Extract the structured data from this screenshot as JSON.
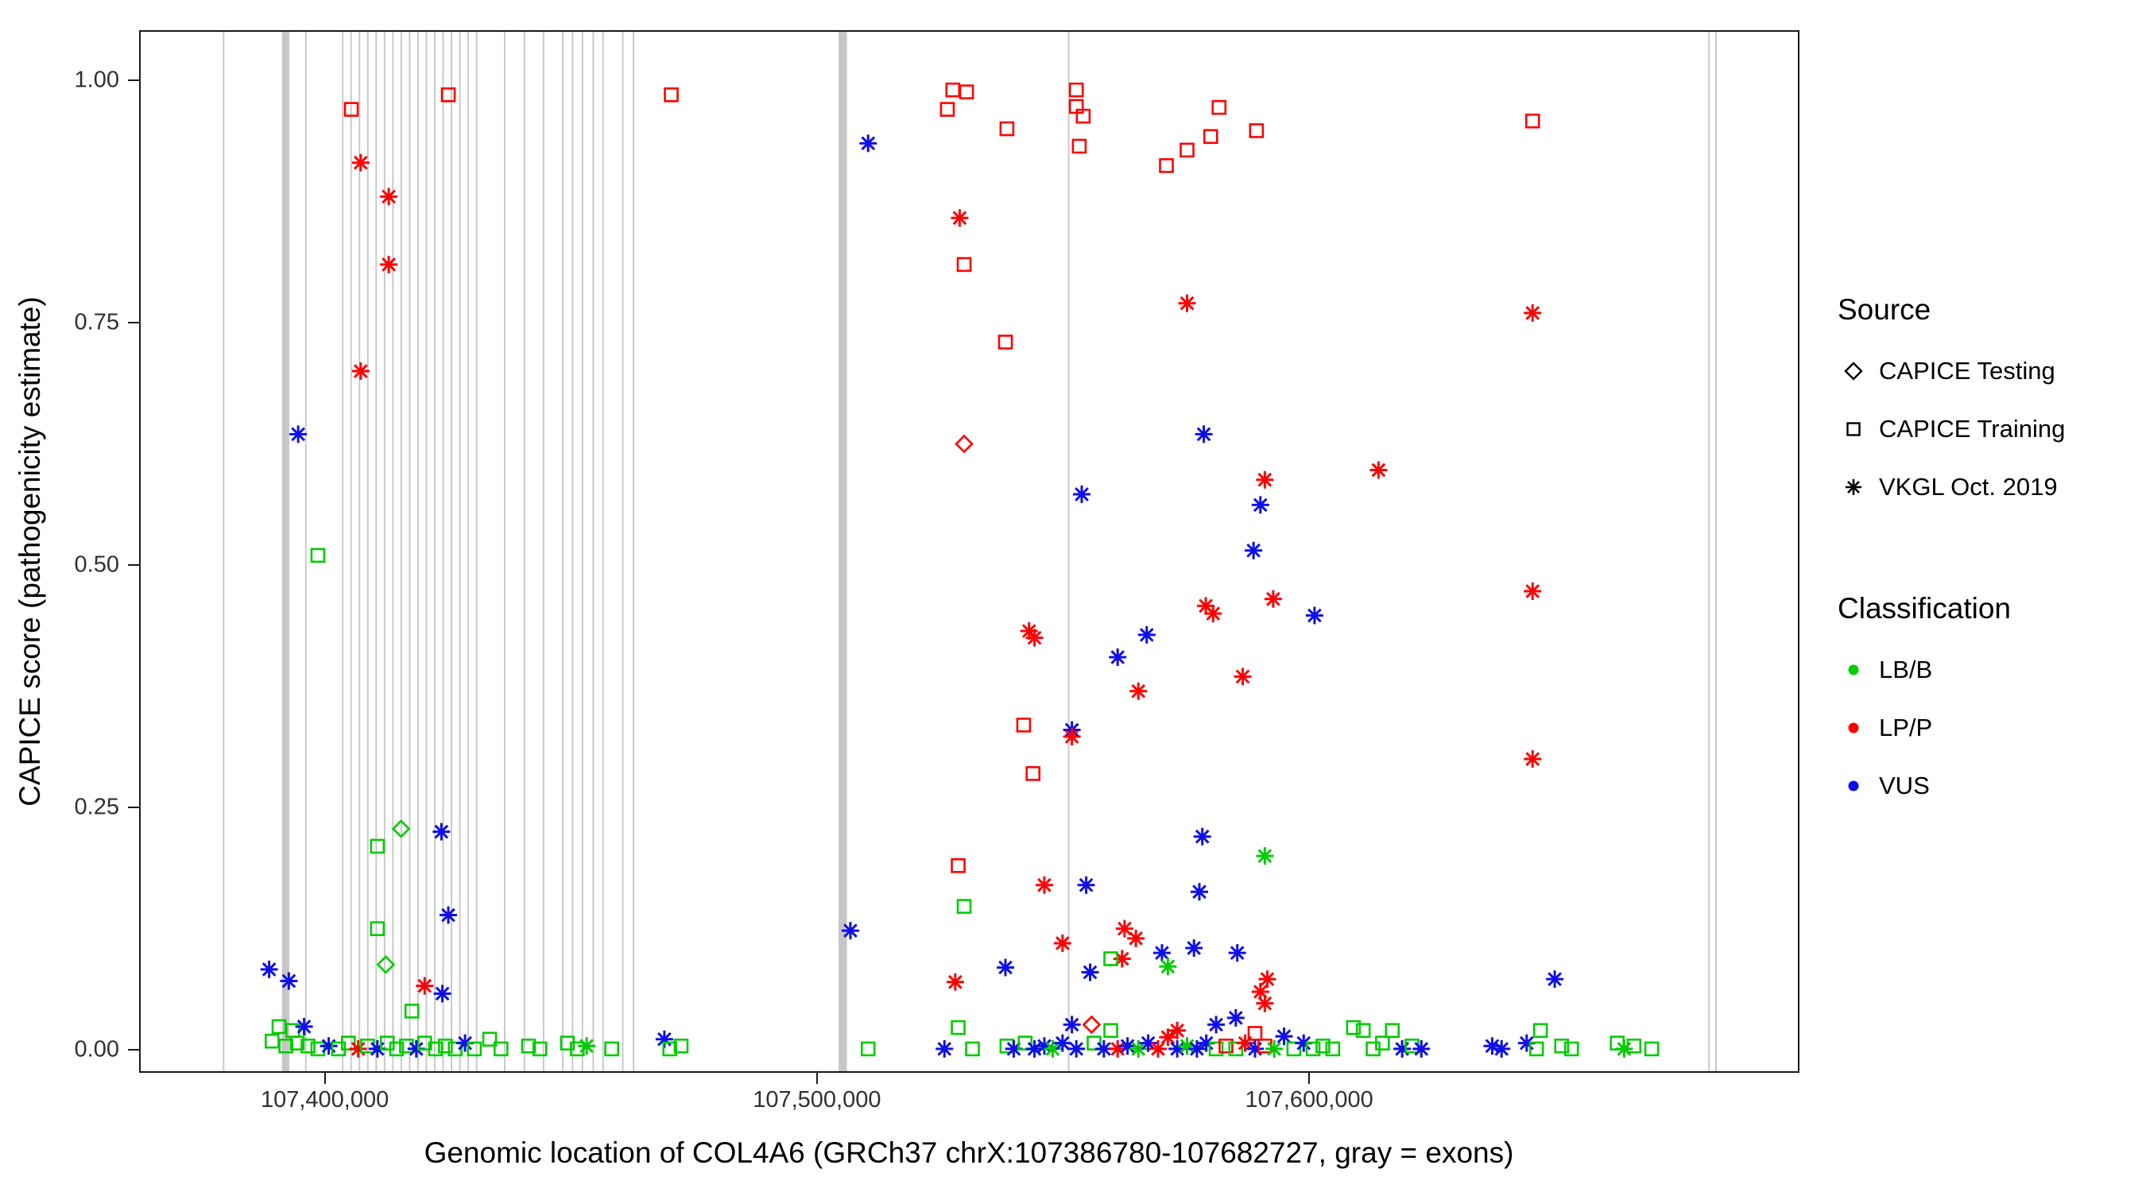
{
  "chart_data": {
    "type": "scatter",
    "title": "",
    "xlabel": "Genomic location of COL4A6 (GRCh37 chrX:107386780-107682727, gray = exons)",
    "ylabel": "CAPICE score (pathogenicity estimate)",
    "xlim": [
      107362600,
      107699300
    ],
    "ylim": [
      -0.022,
      1.05
    ],
    "grid": false,
    "x_ticks": [
      {
        "value": 107400000,
        "label": "107,400,000"
      },
      {
        "value": 107500000,
        "label": "107,500,000"
      },
      {
        "value": 107600000,
        "label": "107,600,000"
      }
    ],
    "y_ticks": [
      {
        "value": 0.0,
        "label": "0.00"
      },
      {
        "value": 0.25,
        "label": "0.25"
      },
      {
        "value": 0.5,
        "label": "0.50"
      },
      {
        "value": 0.75,
        "label": "0.75"
      },
      {
        "value": 1.0,
        "label": "1.00"
      }
    ],
    "exon_color": "#C6C6C6",
    "class_colors": {
      "LB": "#00CC00",
      "LP": "#FF0000",
      "VUS": "#0F0FE8"
    },
    "source_codes": {
      "test": "CAPICE Testing",
      "train": "CAPICE Training",
      "vkgl": "VKGL Oct. 2019"
    },
    "class_codes": {
      "LB": "LB/B",
      "LP": "LP/P",
      "VUS": "VUS"
    },
    "legend": {
      "position": "right",
      "source": {
        "title": "Source",
        "items": [
          {
            "label": "CAPICE Testing",
            "shape": "diamond"
          },
          {
            "label": "CAPICE Training",
            "shape": "square"
          },
          {
            "label": "VKGL Oct. 2019",
            "shape": "asterisk"
          }
        ]
      },
      "classification": {
        "title": "Classification",
        "items": [
          {
            "label": "LB/B",
            "color": "#00CC00"
          },
          {
            "label": "LP/P",
            "color": "#FF0000"
          },
          {
            "label": "VUS",
            "color": "#0F0FE8"
          }
        ]
      }
    },
    "exons": [
      [
        107379300,
        107379600
      ],
      [
        107391300,
        107392800
      ],
      [
        107396000,
        107396300
      ],
      [
        107403500,
        107403800
      ],
      [
        107405200,
        107405500
      ],
      [
        107406900,
        107407200
      ],
      [
        107408600,
        107408900
      ],
      [
        107410300,
        107410600
      ],
      [
        107412000,
        107412300
      ],
      [
        107413700,
        107414000
      ],
      [
        107415400,
        107415700
      ],
      [
        107417100,
        107417400
      ],
      [
        107418800,
        107419100
      ],
      [
        107420500,
        107420800
      ],
      [
        107422200,
        107422500
      ],
      [
        107423900,
        107424200
      ],
      [
        107425600,
        107425900
      ],
      [
        107427300,
        107427600
      ],
      [
        107429000,
        107429300
      ],
      [
        107430700,
        107431000
      ],
      [
        107436400,
        107436700
      ],
      [
        107440400,
        107440700
      ],
      [
        107444300,
        107444600
      ],
      [
        107448200,
        107448500
      ],
      [
        107450200,
        107450500
      ],
      [
        107452200,
        107452500
      ],
      [
        107454400,
        107454700
      ],
      [
        107456400,
        107456700
      ],
      [
        107460400,
        107460700
      ],
      [
        107462600,
        107462900
      ],
      [
        107504400,
        107506100
      ],
      [
        107551000,
        107551300
      ],
      [
        107681100,
        107681400
      ],
      [
        107682500,
        107682800
      ]
    ],
    "point_format": [
      "genomic_position",
      "capice_score",
      "source",
      "classification"
    ],
    "points": [
      [
        107405400,
        0.97,
        "train",
        "LP"
      ],
      [
        107425100,
        0.985,
        "train",
        "LP"
      ],
      [
        107470400,
        0.985,
        "train",
        "LP"
      ],
      [
        107407300,
        0.915,
        "vkgl",
        "LP"
      ],
      [
        107413000,
        0.88,
        "vkgl",
        "LP"
      ],
      [
        107413000,
        0.81,
        "vkgl",
        "LP"
      ],
      [
        107407300,
        0.7,
        "vkgl",
        "LP"
      ],
      [
        107394600,
        0.635,
        "vkgl",
        "VUS"
      ],
      [
        107398600,
        0.51,
        "train",
        "LB"
      ],
      [
        107415500,
        0.228,
        "test",
        "LB"
      ],
      [
        107423700,
        0.225,
        "vkgl",
        "VUS"
      ],
      [
        107410700,
        0.21,
        "train",
        "LB"
      ],
      [
        107425100,
        0.139,
        "vkgl",
        "VUS"
      ],
      [
        107410700,
        0.125,
        "train",
        "LB"
      ],
      [
        107412400,
        0.088,
        "test",
        "LB"
      ],
      [
        107388700,
        0.083,
        "vkgl",
        "VUS"
      ],
      [
        107392700,
        0.071,
        "vkgl",
        "VUS"
      ],
      [
        107420300,
        0.066,
        "vkgl",
        "LP"
      ],
      [
        107423900,
        0.058,
        "vkgl",
        "VUS"
      ],
      [
        107390700,
        0.024,
        "train",
        "LB"
      ],
      [
        107393500,
        0.02,
        "train",
        "LB"
      ],
      [
        107395800,
        0.024,
        "vkgl",
        "VUS"
      ],
      [
        107389300,
        0.009,
        "train",
        "LB"
      ],
      [
        107392100,
        0.004,
        "train",
        "LB"
      ],
      [
        107394400,
        0.007,
        "train",
        "LB"
      ],
      [
        107396600,
        0.004,
        "train",
        "LB"
      ],
      [
        107398600,
        0.001,
        "train",
        "LB"
      ],
      [
        107400800,
        0.004,
        "vkgl",
        "VUS"
      ],
      [
        107402800,
        0.001,
        "train",
        "LB"
      ],
      [
        107404800,
        0.007,
        "train",
        "LB"
      ],
      [
        107406800,
        0.001,
        "vkgl",
        "LP"
      ],
      [
        107408700,
        0.004,
        "train",
        "LB"
      ],
      [
        107410700,
        0.001,
        "vkgl",
        "VUS"
      ],
      [
        107412700,
        0.007,
        "train",
        "LB"
      ],
      [
        107414600,
        0.001,
        "train",
        "LB"
      ],
      [
        107416600,
        0.004,
        "train",
        "LB"
      ],
      [
        107418600,
        0.001,
        "vkgl",
        "VUS"
      ],
      [
        107420300,
        0.007,
        "train",
        "LB"
      ],
      [
        107422500,
        0.001,
        "train",
        "LB"
      ],
      [
        107424500,
        0.004,
        "train",
        "LB"
      ],
      [
        107426500,
        0.001,
        "train",
        "LB"
      ],
      [
        107428500,
        0.007,
        "vkgl",
        "VUS"
      ],
      [
        107430400,
        0.001,
        "train",
        "LB"
      ],
      [
        107417700,
        0.04,
        "train",
        "LB"
      ],
      [
        107433500,
        0.011,
        "train",
        "LB"
      ],
      [
        107435800,
        0.001,
        "train",
        "LB"
      ],
      [
        107441400,
        0.004,
        "train",
        "LB"
      ],
      [
        107443700,
        0.001,
        "train",
        "LB"
      ],
      [
        107449300,
        0.007,
        "train",
        "LB"
      ],
      [
        107451300,
        0.001,
        "train",
        "LB"
      ],
      [
        107453200,
        0.004,
        "vkgl",
        "LB"
      ],
      [
        107458300,
        0.001,
        "train",
        "LB"
      ],
      [
        107469000,
        0.011,
        "vkgl",
        "VUS"
      ],
      [
        107470100,
        0.001,
        "train",
        "LB"
      ],
      [
        107472400,
        0.004,
        "train",
        "LB"
      ],
      [
        107510400,
        0.935,
        "vkgl",
        "VUS"
      ],
      [
        107506800,
        0.123,
        "vkgl",
        "VUS"
      ],
      [
        107510400,
        0.001,
        "train",
        "LB"
      ],
      [
        107527600,
        0.99,
        "train",
        "LP"
      ],
      [
        107530400,
        0.988,
        "train",
        "LP"
      ],
      [
        107526500,
        0.97,
        "train",
        "LP"
      ],
      [
        107538600,
        0.95,
        "train",
        "LP"
      ],
      [
        107552700,
        0.99,
        "train",
        "LP"
      ],
      [
        107552700,
        0.973,
        "train",
        "LP"
      ],
      [
        107554100,
        0.963,
        "train",
        "LP"
      ],
      [
        107553300,
        0.932,
        "train",
        "LP"
      ],
      [
        107571000,
        0.912,
        "train",
        "LP"
      ],
      [
        107575200,
        0.928,
        "train",
        "LP"
      ],
      [
        107580000,
        0.942,
        "train",
        "LP"
      ],
      [
        107581700,
        0.972,
        "train",
        "LP"
      ],
      [
        107589300,
        0.948,
        "train",
        "LP"
      ],
      [
        107645400,
        0.958,
        "train",
        "LP"
      ],
      [
        107529000,
        0.858,
        "vkgl",
        "LP"
      ],
      [
        107529900,
        0.81,
        "train",
        "LP"
      ],
      [
        107538300,
        0.73,
        "train",
        "LP"
      ],
      [
        107575200,
        0.77,
        "vkgl",
        "LP"
      ],
      [
        107645400,
        0.76,
        "vkgl",
        "LP"
      ],
      [
        107529900,
        0.625,
        "test",
        "LP"
      ],
      [
        107578600,
        0.635,
        "vkgl",
        "VUS"
      ],
      [
        107614100,
        0.598,
        "vkgl",
        "LP"
      ],
      [
        107591000,
        0.588,
        "vkgl",
        "LP"
      ],
      [
        107553800,
        0.573,
        "vkgl",
        "VUS"
      ],
      [
        107590100,
        0.562,
        "vkgl",
        "VUS"
      ],
      [
        107588700,
        0.515,
        "vkgl",
        "VUS"
      ],
      [
        107645400,
        0.473,
        "vkgl",
        "LP"
      ],
      [
        107592700,
        0.465,
        "vkgl",
        "LP"
      ],
      [
        107579000,
        0.458,
        "vkgl",
        "LP"
      ],
      [
        107580500,
        0.45,
        "vkgl",
        "LP"
      ],
      [
        107601100,
        0.448,
        "vkgl",
        "VUS"
      ],
      [
        107543100,
        0.432,
        "vkgl",
        "LP"
      ],
      [
        107544200,
        0.425,
        "vkgl",
        "LP"
      ],
      [
        107567000,
        0.428,
        "vkgl",
        "VUS"
      ],
      [
        107561100,
        0.405,
        "vkgl",
        "VUS"
      ],
      [
        107586500,
        0.385,
        "vkgl",
        "LP"
      ],
      [
        107565300,
        0.37,
        "vkgl",
        "LP"
      ],
      [
        107542000,
        0.335,
        "train",
        "LP"
      ],
      [
        107551800,
        0.33,
        "vkgl",
        "VUS"
      ],
      [
        107551800,
        0.323,
        "vkgl",
        "LP"
      ],
      [
        107543900,
        0.285,
        "train",
        "LP"
      ],
      [
        107645400,
        0.3,
        "vkgl",
        "LP"
      ],
      [
        107578300,
        0.22,
        "vkgl",
        "VUS"
      ],
      [
        107591000,
        0.2,
        "vkgl",
        "LB"
      ],
      [
        107528700,
        0.19,
        "train",
        "LP"
      ],
      [
        107546200,
        0.17,
        "vkgl",
        "LP"
      ],
      [
        107554700,
        0.17,
        "vkgl",
        "VUS"
      ],
      [
        107577700,
        0.163,
        "vkgl",
        "VUS"
      ],
      [
        107529900,
        0.148,
        "train",
        "LB"
      ],
      [
        107562500,
        0.125,
        "vkgl",
        "LP"
      ],
      [
        107564800,
        0.115,
        "vkgl",
        "LP"
      ],
      [
        107549900,
        0.11,
        "vkgl",
        "LP"
      ],
      [
        107570100,
        0.1,
        "vkgl",
        "VUS"
      ],
      [
        107576600,
        0.105,
        "vkgl",
        "VUS"
      ],
      [
        107585400,
        0.1,
        "vkgl",
        "VUS"
      ],
      [
        107562000,
        0.094,
        "vkgl",
        "LP"
      ],
      [
        107559700,
        0.094,
        "train",
        "LB"
      ],
      [
        107571300,
        0.086,
        "vkgl",
        "LB"
      ],
      [
        107538300,
        0.085,
        "vkgl",
        "VUS"
      ],
      [
        107555500,
        0.08,
        "vkgl",
        "VUS"
      ],
      [
        107528100,
        0.07,
        "vkgl",
        "LP"
      ],
      [
        107591500,
        0.073,
        "vkgl",
        "LP"
      ],
      [
        107590100,
        0.06,
        "vkgl",
        "LP"
      ],
      [
        107591000,
        0.048,
        "vkgl",
        "LP"
      ],
      [
        107649900,
        0.073,
        "vkgl",
        "VUS"
      ],
      [
        107525900,
        0.001,
        "vkgl",
        "VUS"
      ],
      [
        107528700,
        0.023,
        "train",
        "LB"
      ],
      [
        107531600,
        0.001,
        "train",
        "LB"
      ],
      [
        107538600,
        0.004,
        "train",
        "LB"
      ],
      [
        107540000,
        0.001,
        "vkgl",
        "VUS"
      ],
      [
        107542300,
        0.007,
        "train",
        "LB"
      ],
      [
        107544200,
        0.001,
        "vkgl",
        "VUS"
      ],
      [
        107546200,
        0.004,
        "vkgl",
        "VUS"
      ],
      [
        107547900,
        0.001,
        "vkgl",
        "LB"
      ],
      [
        107549900,
        0.007,
        "vkgl",
        "VUS"
      ],
      [
        107551800,
        0.026,
        "vkgl",
        "VUS"
      ],
      [
        107552700,
        0.001,
        "vkgl",
        "VUS"
      ],
      [
        107555800,
        0.026,
        "test",
        "LP"
      ],
      [
        107556300,
        0.007,
        "train",
        "LB"
      ],
      [
        107558300,
        0.001,
        "vkgl",
        "VUS"
      ],
      [
        107559700,
        0.02,
        "train",
        "LB"
      ],
      [
        107561100,
        0.001,
        "vkgl",
        "LP"
      ],
      [
        107563100,
        0.004,
        "vkgl",
        "VUS"
      ],
      [
        107565300,
        0.001,
        "vkgl",
        "LB"
      ],
      [
        107567300,
        0.007,
        "vkgl",
        "VUS"
      ],
      [
        107569300,
        0.001,
        "vkgl",
        "LP"
      ],
      [
        107571300,
        0.013,
        "vkgl",
        "LP"
      ],
      [
        107573200,
        0.001,
        "vkgl",
        "VUS"
      ],
      [
        107573200,
        0.02,
        "vkgl",
        "LP"
      ],
      [
        107575200,
        0.004,
        "vkgl",
        "LB"
      ],
      [
        107577200,
        0.001,
        "vkgl",
        "VUS"
      ],
      [
        107579100,
        0.007,
        "vkgl",
        "VUS"
      ],
      [
        107581100,
        0.026,
        "vkgl",
        "VUS"
      ],
      [
        107581100,
        0.001,
        "train",
        "LB"
      ],
      [
        107583100,
        0.004,
        "train",
        "LP"
      ],
      [
        107585100,
        0.033,
        "vkgl",
        "VUS"
      ],
      [
        107585100,
        0.001,
        "train",
        "LB"
      ],
      [
        107587000,
        0.007,
        "vkgl",
        "LP"
      ],
      [
        107589000,
        0.017,
        "train",
        "LP"
      ],
      [
        107589000,
        0.001,
        "vkgl",
        "VUS"
      ],
      [
        107591000,
        0.004,
        "train",
        "LP"
      ],
      [
        107592900,
        0.001,
        "vkgl",
        "LB"
      ],
      [
        107594900,
        0.014,
        "vkgl",
        "VUS"
      ],
      [
        107596900,
        0.001,
        "train",
        "LB"
      ],
      [
        107598900,
        0.007,
        "vkgl",
        "VUS"
      ],
      [
        107600800,
        0.001,
        "train",
        "LB"
      ],
      [
        107602800,
        0.004,
        "train",
        "LB"
      ],
      [
        107604800,
        0.001,
        "train",
        "LB"
      ],
      [
        107609000,
        0.023,
        "train",
        "LB"
      ],
      [
        107611000,
        0.02,
        "train",
        "LB"
      ],
      [
        107613000,
        0.001,
        "train",
        "LB"
      ],
      [
        107614900,
        0.007,
        "train",
        "LB"
      ],
      [
        107616900,
        0.02,
        "train",
        "LB"
      ],
      [
        107618900,
        0.001,
        "vkgl",
        "VUS"
      ],
      [
        107620900,
        0.004,
        "train",
        "LB"
      ],
      [
        107622800,
        0.001,
        "vkgl",
        "VUS"
      ],
      [
        107637200,
        0.004,
        "vkgl",
        "VUS"
      ],
      [
        107639100,
        0.001,
        "vkgl",
        "VUS"
      ],
      [
        107644200,
        0.007,
        "vkgl",
        "VUS"
      ],
      [
        107646200,
        0.001,
        "train",
        "LB"
      ],
      [
        107647000,
        0.02,
        "train",
        "LB"
      ],
      [
        107651300,
        0.004,
        "train",
        "LB"
      ],
      [
        107653300,
        0.001,
        "train",
        "LB"
      ],
      [
        107662600,
        0.007,
        "train",
        "LB"
      ],
      [
        107664000,
        0.001,
        "vkgl",
        "LB"
      ],
      [
        107666000,
        0.004,
        "train",
        "LB"
      ],
      [
        107669600,
        0.001,
        "train",
        "LB"
      ]
    ]
  }
}
